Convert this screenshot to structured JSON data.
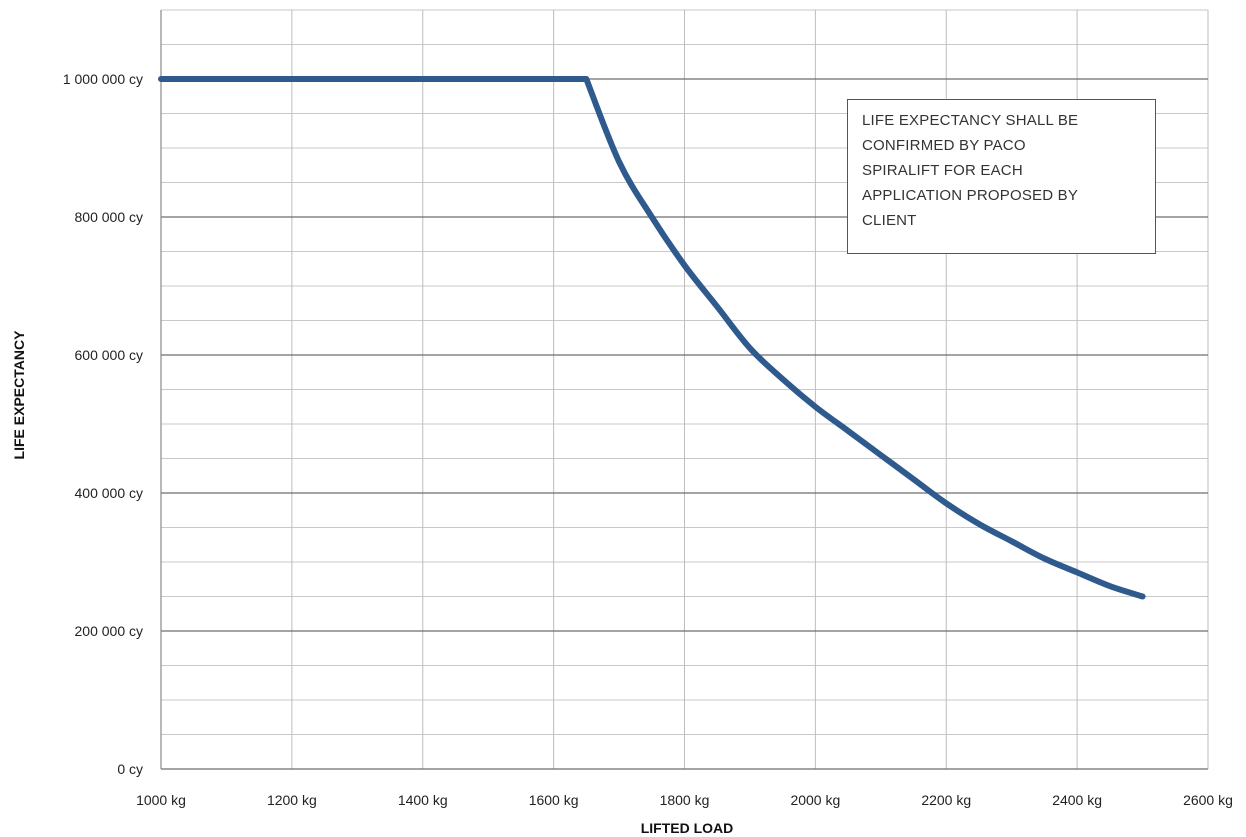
{
  "chart_data": {
    "type": "line",
    "title": "",
    "xlabel": "LIFTED LOAD",
    "ylabel": "LIFE EXPECTANCY",
    "xlim": [
      1000,
      2600
    ],
    "ylim": [
      0,
      1100000
    ],
    "x_ticks": [
      1000,
      1200,
      1400,
      1600,
      1800,
      2000,
      2200,
      2400,
      2600
    ],
    "x_tick_labels": [
      "1000 kg",
      "1200 kg",
      "1400 kg",
      "1600 kg",
      "1800 kg",
      "2000 kg",
      "2200 kg",
      "2400 kg",
      "2600 kg"
    ],
    "y_ticks": [
      0,
      200000,
      400000,
      600000,
      800000,
      1000000
    ],
    "y_tick_labels": [
      "0 cy",
      "200 000 cy",
      "400 000 cy",
      "600 000 cy",
      "800 000 cy",
      "1 000 000 cy"
    ],
    "grid": true,
    "minor_grid": {
      "x_step": 200,
      "y_step": 50000
    },
    "series": [
      {
        "color": "#2e5a8e",
        "x": [
          1000,
          1650,
          1700,
          1750,
          1800,
          1850,
          1900,
          1950,
          2000,
          2050,
          2100,
          2150,
          2200,
          2250,
          2300,
          2350,
          2400,
          2450,
          2500
        ],
        "y": [
          1000000,
          1000000,
          880000,
          800000,
          730000,
          670000,
          610000,
          565000,
          525000,
          490000,
          455000,
          420000,
          385000,
          355000,
          330000,
          305000,
          285000,
          265000,
          250000
        ]
      }
    ],
    "annotations": [
      {
        "lines": [
          "LIFE EXPECTANCY SHALL BE",
          "CONFIRMED BY PACO",
          "SPIRALIFT FOR EACH",
          "APPLICATION PROPOSED BY",
          "CLIENT"
        ]
      }
    ]
  }
}
